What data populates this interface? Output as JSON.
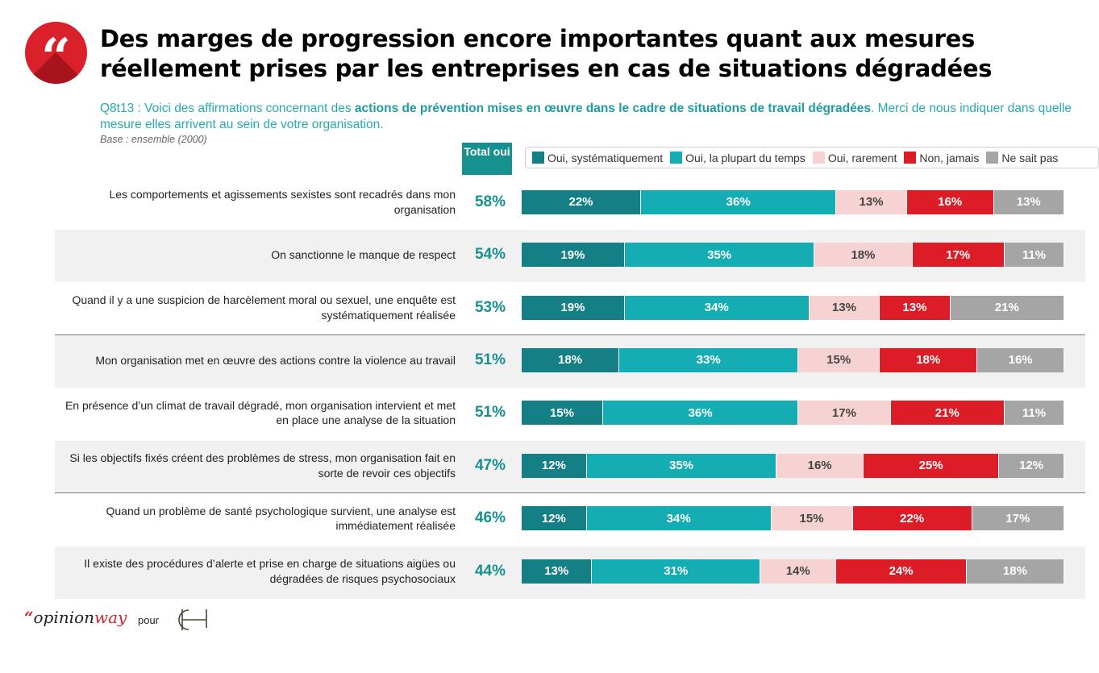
{
  "header": {
    "title_line1": "Des marges de progression encore importantes quant aux mesures",
    "title_line2": "réellement prises par les entreprises en cas de situations dégradées",
    "quote_icon": "quote-icon",
    "question_prefix": "Q8t13 : Voici des affirmations concernant des ",
    "question_bold": "actions de prévention mises en œuvre dans le cadre de situations de travail dégradées",
    "question_suffix": ". Merci de nous indiquer dans quelle mesure elles arrivent au sein de votre organisation.",
    "base": "Base : ensemble (2000)"
  },
  "total_header": "Total oui",
  "footer": {
    "logo_quote": "“",
    "logo_opinion": "opinion",
    "logo_way": "way",
    "pour": "pour",
    "partner_logo": "AH-logo"
  },
  "chart_data": {
    "type": "bar",
    "orientation": "horizontal-stacked-100",
    "title": "Des marges de progression encore importantes quant aux mesures réellement prises par les entreprises en cas de situations dégradées",
    "xlabel": "",
    "ylabel": "",
    "xlim": [
      0,
      100
    ],
    "unit": "%",
    "legend_position": "top",
    "colors": {
      "Oui, systématiquement": "#147f85",
      "Oui, la plupart du temps": "#14adb4",
      "Oui, rarement": "#f7d2d3",
      "Non, jamais": "#dc1c27",
      "Ne sait pas": "#a5a5a5"
    },
    "categories": [
      "Les comportements et agissements sexistes sont recadrés dans mon organisation",
      "On sanctionne le manque de respect",
      "Quand il y a une suspicion de harcèlement moral ou sexuel, une enquête est systématiquement réalisée",
      "Mon organisation met en œuvre des actions contre la violence au travail",
      "En présence d’un climat de travail dégradé, mon organisation intervient et met en place une analyse de la situation",
      "Si les objectifs fixés créent des problèmes de stress, mon organisation fait en sorte de revoir ces objectifs",
      "Quand un problème de santé psychologique survient, une analyse est immédiatement réalisée",
      "Il existe des procédures d’alerte et prise en charge de situations aigües ou dégradées de risques psychosociaux"
    ],
    "total_oui": [
      58,
      54,
      53,
      51,
      51,
      47,
      46,
      44
    ],
    "series": [
      {
        "name": "Oui, systématiquement",
        "values": [
          22,
          19,
          19,
          18,
          15,
          12,
          12,
          13
        ]
      },
      {
        "name": "Oui, la plupart du temps",
        "values": [
          36,
          35,
          34,
          33,
          36,
          35,
          34,
          31
        ]
      },
      {
        "name": "Oui, rarement",
        "values": [
          13,
          18,
          13,
          15,
          17,
          16,
          15,
          14
        ]
      },
      {
        "name": "Non, jamais",
        "values": [
          16,
          17,
          13,
          18,
          21,
          25,
          22,
          24
        ]
      },
      {
        "name": "Ne sait pas",
        "values": [
          13,
          11,
          21,
          16,
          11,
          12,
          17,
          18
        ]
      }
    ],
    "shaded_rows": [
      1,
      3,
      5,
      7
    ],
    "separators_after_rows": [
      2,
      5
    ]
  }
}
